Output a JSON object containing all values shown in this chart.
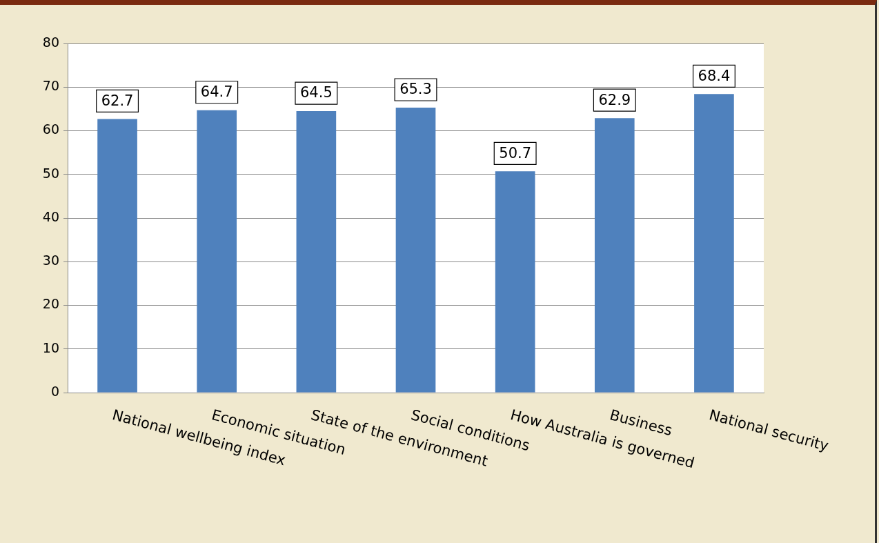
{
  "chart_data": {
    "type": "bar",
    "categories": [
      "National wellbeing index",
      "Economic situation",
      "State of the environment",
      "Social conditions",
      "How Australia is governed",
      "Business",
      "National security"
    ],
    "values": [
      62.7,
      64.7,
      64.5,
      65.3,
      50.7,
      62.9,
      68.4
    ],
    "color": "#4f81bd",
    "ylim": [
      0,
      80
    ],
    "yticks": [
      0,
      10,
      20,
      30,
      40,
      50,
      60,
      70,
      80
    ],
    "grid": "y",
    "data_labels": true
  }
}
